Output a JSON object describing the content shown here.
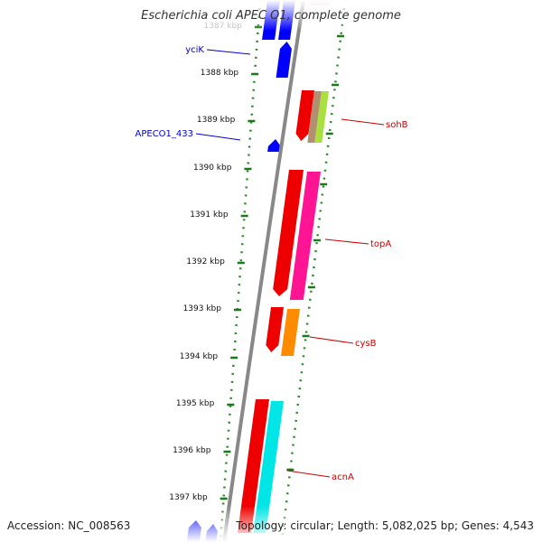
{
  "title": "Escherichia coli APEC O1, complete genome",
  "accession": "Accession: NC_008563",
  "summary": "Topology: circular; Length: 5,082,025 bp; Genes: 4,543",
  "colors": {
    "backbone": "#888888",
    "ticks": "#2a8a2a",
    "label_left": "#0000cc",
    "label_right": "#cc0000",
    "reverse_gene": "#0000ff"
  },
  "ruler": [
    {
      "label": "1387 kbp"
    },
    {
      "label": "1388 kbp"
    },
    {
      "label": "1389 kbp"
    },
    {
      "label": "1390 kbp"
    },
    {
      "label": "1391 kbp"
    },
    {
      "label": "1392 kbp"
    },
    {
      "label": "1393 kbp"
    },
    {
      "label": "1394 kbp"
    },
    {
      "label": "1395 kbp"
    },
    {
      "label": "1396 kbp"
    },
    {
      "label": "1397 kbp"
    }
  ],
  "gene_labels_left": [
    {
      "name": "yciK"
    },
    {
      "name": "APECO1_433"
    }
  ],
  "gene_labels_right": [
    {
      "name": "sohB"
    },
    {
      "name": "topA"
    },
    {
      "name": "cysB"
    },
    {
      "name": "acnA"
    }
  ],
  "features": [
    {
      "name": "blue-gene-top-a",
      "color": "#0000ff"
    },
    {
      "name": "blue-gene-top-b",
      "color": "#0000ff"
    },
    {
      "name": "yciK-gene",
      "color": "#0000ff"
    },
    {
      "name": "APECO1_433-gene",
      "color": "#0000ff"
    },
    {
      "name": "sohB-gene",
      "color": "#ee0000"
    },
    {
      "name": "sohB-cog-1",
      "color": "#b09070"
    },
    {
      "name": "sohB-cog-2",
      "color": "#a8e040"
    },
    {
      "name": "topA-gene",
      "color": "#ee0000"
    },
    {
      "name": "topA-cog",
      "color": "#ff1493"
    },
    {
      "name": "cysB-gene",
      "color": "#ee0000"
    },
    {
      "name": "cysB-cog",
      "color": "#ff8c00"
    },
    {
      "name": "acnA-gene",
      "color": "#ee0000"
    },
    {
      "name": "acnA-cog",
      "color": "#00e5e5"
    },
    {
      "name": "blue-gene-bottom-a",
      "color": "#0000ff"
    },
    {
      "name": "blue-gene-bottom-b",
      "color": "#0000ff"
    }
  ]
}
